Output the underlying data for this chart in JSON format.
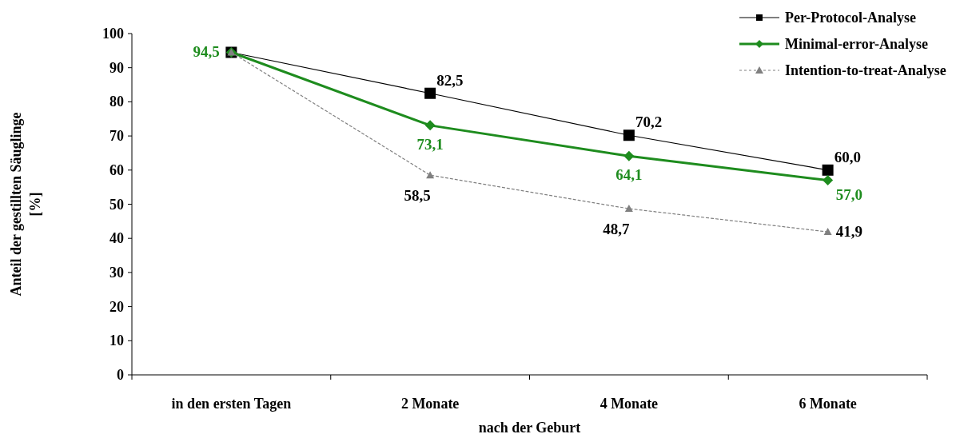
{
  "chart_data": {
    "type": "line",
    "xlabel": "nach der Geburt",
    "ylabel": "Anteil der gestillten Säuglinge\n[%]",
    "categories": [
      "in den ersten Tagen",
      "2 Monate",
      "4 Monate",
      "6 Monate"
    ],
    "ylim": [
      0,
      100
    ],
    "yticks": [
      0,
      10,
      20,
      30,
      40,
      50,
      60,
      70,
      80,
      90,
      100
    ],
    "grid": false,
    "legend": "top right",
    "series": [
      {
        "name": "Per-Protocol-Analyse",
        "color": "#000000",
        "marker": "square",
        "line_style": "solid",
        "values": [
          94.5,
          82.5,
          70.2,
          60.0
        ],
        "value_labels": [
          null,
          "82,5",
          "70,2",
          "60,0"
        ]
      },
      {
        "name": "Minimal-error-Analyse",
        "color": "#1e8c1e",
        "marker": "diamond",
        "line_style": "solid",
        "values": [
          94.5,
          73.1,
          64.1,
          57.0
        ],
        "value_labels": [
          "94,5",
          "73,1",
          "64,1",
          "57,0"
        ]
      },
      {
        "name": "Intention-to-treat-Analyse",
        "color": "#808080",
        "marker": "triangle",
        "line_style": "dotted",
        "values": [
          94.5,
          58.5,
          48.7,
          41.9
        ],
        "value_labels": [
          null,
          "58,5",
          "48,7",
          "41,9"
        ]
      }
    ]
  }
}
